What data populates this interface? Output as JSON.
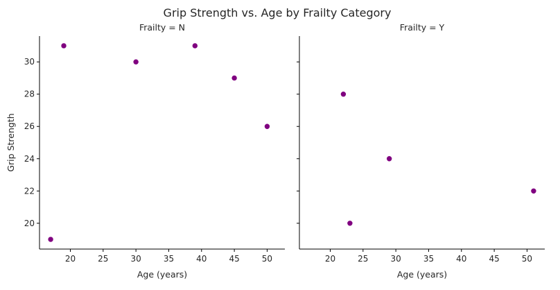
{
  "chart_data": {
    "type": "scatter",
    "title": "Grip Strength vs. Age by Frailty Category",
    "xlabel": "Age (years)",
    "ylabel": "Grip Strength",
    "xlim": [
      15.3,
      52.7
    ],
    "ylim": [
      18.4,
      31.6
    ],
    "xticks": [
      20,
      25,
      30,
      35,
      40,
      45,
      50
    ],
    "yticks": [
      20,
      22,
      24,
      26,
      28,
      30
    ],
    "grid": false,
    "shared_y": true,
    "marker_color": "#800080",
    "panels": [
      {
        "title": "Frailty = N",
        "points": [
          {
            "x": 17,
            "y": 19
          },
          {
            "x": 19,
            "y": 31
          },
          {
            "x": 30,
            "y": 30
          },
          {
            "x": 39,
            "y": 31
          },
          {
            "x": 45,
            "y": 29
          },
          {
            "x": 50,
            "y": 26
          }
        ]
      },
      {
        "title": "Frailty = Y",
        "points": [
          {
            "x": 22,
            "y": 28
          },
          {
            "x": 23,
            "y": 20
          },
          {
            "x": 29,
            "y": 24
          },
          {
            "x": 51,
            "y": 22
          }
        ]
      }
    ]
  }
}
